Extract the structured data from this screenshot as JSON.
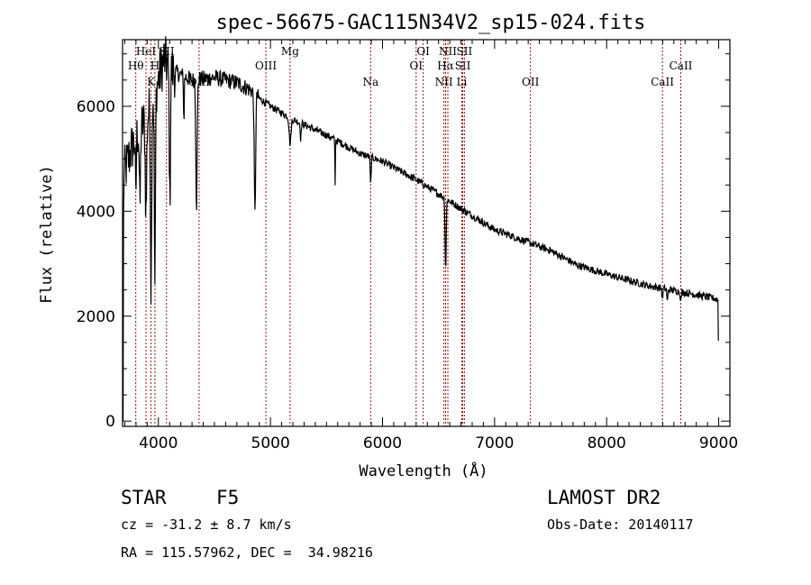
{
  "chart_data": {
    "type": "line",
    "title": "spec-56675-GAC115N34V2_sp15-024.fits",
    "xlabel": "Wavelength (Å)",
    "ylabel": "Flux (relative)",
    "xlim": [
      3680,
      9100
    ],
    "ylim": [
      -100,
      7270
    ],
    "xticks": [
      4000,
      5000,
      6000,
      7000,
      8000,
      9000
    ],
    "yticks": [
      0,
      2000,
      4000,
      6000
    ],
    "grid": false,
    "series": [
      {
        "name": "spectrum",
        "continuum": [
          [
            3685,
            0
          ],
          [
            3690,
            4700
          ],
          [
            3720,
            4900
          ],
          [
            3760,
            5200
          ],
          [
            3820,
            5500
          ],
          [
            3900,
            5800
          ],
          [
            3960,
            6200
          ],
          [
            4000,
            6500
          ],
          [
            4050,
            6900
          ],
          [
            4100,
            6700
          ],
          [
            4200,
            6600
          ],
          [
            4300,
            6500
          ],
          [
            4500,
            6550
          ],
          [
            4700,
            6450
          ],
          [
            4830,
            6300
          ],
          [
            4900,
            6150
          ],
          [
            5000,
            6000
          ],
          [
            5200,
            5750
          ],
          [
            5500,
            5450
          ],
          [
            5800,
            5100
          ],
          [
            6000,
            4950
          ],
          [
            6300,
            4600
          ],
          [
            6500,
            4330
          ],
          [
            6700,
            4050
          ],
          [
            7000,
            3650
          ],
          [
            7260,
            3440
          ],
          [
            7500,
            3250
          ],
          [
            7730,
            2980
          ],
          [
            8000,
            2800
          ],
          [
            8370,
            2580
          ],
          [
            8700,
            2450
          ],
          [
            8980,
            2330
          ],
          [
            8995,
            2300
          ],
          [
            9000,
            380
          ]
        ],
        "absorption": [
          [
            3798,
            1200,
            4
          ],
          [
            3835,
            1500,
            5
          ],
          [
            3889,
            1800,
            6
          ],
          [
            3934,
            3500,
            5
          ],
          [
            3969,
            3700,
            5
          ],
          [
            4102,
            2600,
            5
          ],
          [
            4227,
            900,
            3
          ],
          [
            4340,
            2400,
            6
          ],
          [
            4861,
            2300,
            6
          ],
          [
            5175,
            500,
            8
          ],
          [
            5270,
            300,
            4
          ],
          [
            5577,
            900,
            2
          ],
          [
            5894,
            550,
            4
          ],
          [
            6563,
            1350,
            5
          ],
          [
            8498,
            200,
            4
          ],
          [
            8542,
            250,
            4
          ],
          [
            8662,
            200,
            4
          ]
        ]
      }
    ],
    "line_markers": [
      {
        "label": "Hθ",
        "wavelength": 3798,
        "row": 2
      },
      {
        "label": "HeI",
        "wavelength": 3889,
        "row": 1
      },
      {
        "label": "K",
        "wavelength": 3934,
        "row": 3
      },
      {
        "label": "H",
        "wavelength": 3969,
        "row": 2
      },
      {
        "label": "SII",
        "wavelength": 4072,
        "row": 1
      },
      {
        "label": "OIII",
        "wavelength": 4363,
        "row": 3
      },
      {
        "label": "OIII",
        "wavelength": 4959,
        "row": 2
      },
      {
        "label": "Mg",
        "wavelength": 5175,
        "row": 1
      },
      {
        "label": "Na",
        "wavelength": 5894,
        "row": 3
      },
      {
        "label": "OI",
        "wavelength": 6300,
        "row": 2
      },
      {
        "label": "OI",
        "wavelength": 6363,
        "row": 1
      },
      {
        "label": "NII",
        "wavelength": 6548,
        "row": 3
      },
      {
        "label": "Hα",
        "wavelength": 6563,
        "row": 2
      },
      {
        "label": "NII",
        "wavelength": 6583,
        "row": 1
      },
      {
        "label": "Li",
        "wavelength": 6707,
        "row": 3
      },
      {
        "label": "SII",
        "wavelength": 6716,
        "row": 2
      },
      {
        "label": "SII",
        "wavelength": 6731,
        "row": 1
      },
      {
        "label": "OII",
        "wavelength": 7320,
        "row": 3
      },
      {
        "label": "CaII",
        "wavelength": 8498,
        "row": 3
      },
      {
        "label": "CaII",
        "wavelength": 8662,
        "row": 2
      }
    ],
    "marker_color": "#8b1a1a"
  },
  "info": {
    "object_class": "STAR",
    "subclass": "F5",
    "survey": "LAMOST DR2",
    "redshift": "cz = -31.2 ± 8.7 km/s",
    "obs_date": "Obs-Date: 20140117",
    "coords": "RA = 115.57962, DEC =  34.98216"
  }
}
